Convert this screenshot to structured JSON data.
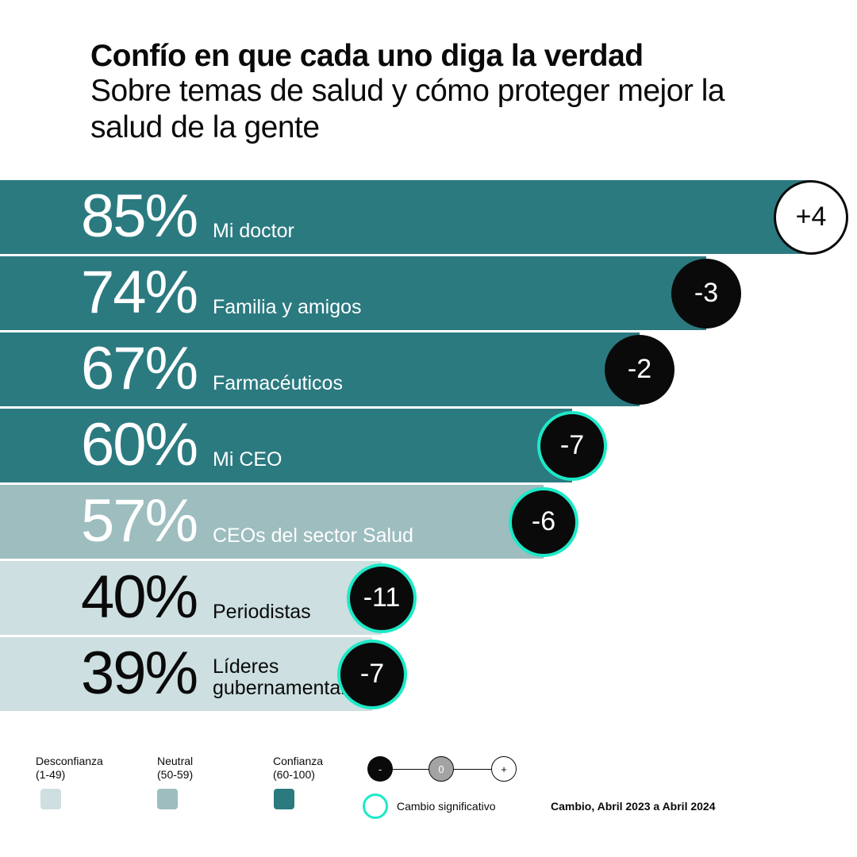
{
  "chart_data": {
    "type": "bar",
    "orientation": "horizontal",
    "title": "Confío en que cada uno diga la verdad",
    "subtitle": "Sobre temas de salud y cómo proteger mejor la salud de la gente",
    "categories": [
      "Mi doctor",
      "Familia y amigos",
      "Farmacéuticos",
      "Mi CEO",
      "CEOs del sector Salud",
      "Periodistas",
      "Líderes gubernamentales"
    ],
    "values": [
      85,
      74,
      67,
      60,
      57,
      40,
      39
    ],
    "value_labels": [
      "85%",
      "74%",
      "67%",
      "60%",
      "57%",
      "40%",
      "39%"
    ],
    "change": [
      4,
      -3,
      -2,
      -7,
      -6,
      -11,
      -7
    ],
    "change_labels": [
      "+4",
      "-3",
      "-2",
      "-7",
      "-6",
      "-11",
      "-7"
    ],
    "significant": [
      false,
      false,
      false,
      true,
      true,
      true,
      true
    ],
    "categories_band": [
      "trust",
      "trust",
      "trust",
      "trust",
      "neutral",
      "distrust",
      "distrust"
    ]
  },
  "colors": {
    "trust": "#2b7a80",
    "neutral": "#9dbdbf",
    "distrust": "#cddfe0",
    "significant": "#1de9c8",
    "negative": "#0a0a0a",
    "zero": "#a3a3a3"
  },
  "legend": {
    "distrust": "Desconfianza\n(1-49)",
    "neutral": "Neutral\n(50-59)",
    "trust": "Confianza\n(60-100)",
    "minus": "-",
    "zero": "0",
    "plus": "+",
    "significant": "Cambio significativo",
    "period": "Cambio, Abril 2023 a Abril 2024"
  }
}
